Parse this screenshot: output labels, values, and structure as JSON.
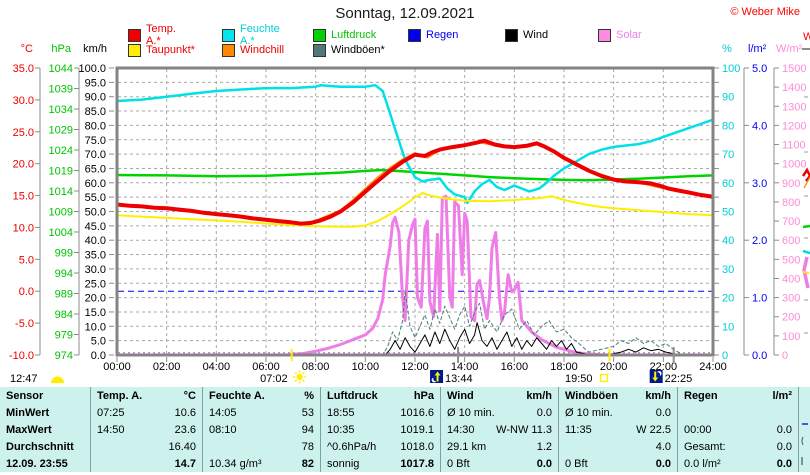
{
  "header": {
    "title": "Sonntag, 12.09.2021",
    "copyright": "© Weber Mike"
  },
  "legend": {
    "row1": [
      {
        "label": "Temp. A.*",
        "box": "#ee0000",
        "color": "#ee0000"
      },
      {
        "label": "Feuchte A.*",
        "box": "#00e5ee",
        "color": "#00cfdd"
      },
      {
        "label": "Luftdruck",
        "box": "#00d400",
        "color": "#00c400"
      },
      {
        "label": "Regen",
        "box": "#0000ee",
        "color": "#0000ee"
      },
      {
        "label": "Wind",
        "box": "#000000",
        "color": "#000000"
      },
      {
        "label": "Solar",
        "box": "#ff8ae2",
        "color": "#ee82ee"
      }
    ],
    "row2": [
      {
        "label": "Taupunkt*",
        "box": "#ffee00",
        "color": "#ee0000"
      },
      {
        "label": "Windchill",
        "box": "#ff8800",
        "color": "#ee0000"
      },
      {
        "label": "Windböen*",
        "box": "#507878",
        "color": "#000000"
      }
    ]
  },
  "astro_markers": {
    "solar_noon": "12:47",
    "sunrise": "07:02",
    "moonrise": "13:44",
    "sunset": "19:50",
    "moonset": "22:25"
  },
  "chart_data": {
    "type": "line",
    "title": "Sonntag, 12.09.2021",
    "grid": true,
    "x_axis": {
      "unit": "time",
      "range_hours": [
        0,
        24
      ],
      "ticks": [
        "00:00",
        "02:00",
        "04:00",
        "06:00",
        "08:00",
        "10:00",
        "12:00",
        "14:00",
        "16:00",
        "18:00",
        "20:00",
        "22:00",
        "24:00"
      ]
    },
    "axes": {
      "temp": {
        "unit": "°C",
        "min": -10,
        "max": 35,
        "step": 5,
        "color": "#ee0000",
        "labels": [
          "35.0",
          "30.0",
          "25.0",
          "20.0",
          "15.0",
          "10.0",
          "5.0",
          "0.0",
          "-5.0",
          "-10.0"
        ]
      },
      "hpa": {
        "unit": "hPa",
        "min": 974,
        "max": 1044,
        "step": 5,
        "color": "#00c400",
        "labels": [
          "1044",
          "1039",
          "1034",
          "1029",
          "1024",
          "1019",
          "1014",
          "1009",
          "1004",
          "999",
          "994",
          "989",
          "984",
          "979",
          "974"
        ]
      },
      "kmh": {
        "unit": "km/h",
        "min": 0,
        "max": 100,
        "step": 5,
        "color": "#000000",
        "labels": [
          "100.0",
          "95.0",
          "90.0",
          "85.0",
          "80.0",
          "75.0",
          "70.0",
          "65.0",
          "60.0",
          "55.0",
          "50.0",
          "45.0",
          "40.0",
          "35.0",
          "30.0",
          "25.0",
          "20.0",
          "15.0",
          "10.0",
          "5.0",
          "0.0"
        ]
      },
      "percent": {
        "unit": "%",
        "min": 0,
        "max": 100,
        "step": 10,
        "tick_step": 5,
        "color": "#00ccd5",
        "labels": [
          "100",
          "90",
          "80",
          "70",
          "60",
          "50",
          "40",
          "30",
          "20",
          "10",
          "0"
        ]
      },
      "rain": {
        "unit": "l/m²",
        "min": 0,
        "max": 5,
        "step": 1,
        "color": "#0000ee",
        "labels": [
          "5.0",
          "4.0",
          "3.0",
          "2.0",
          "1.0",
          "0.0"
        ]
      },
      "solar": {
        "unit": "W/m²",
        "min": 0,
        "max": 1500,
        "step": 100,
        "color": "#ff8ad8",
        "labels": [
          "1500",
          "1400",
          "1300",
          "1200",
          "1100",
          "1000",
          "900",
          "800",
          "700",
          "600",
          "500",
          "400",
          "300",
          "200",
          "100",
          "0"
        ]
      }
    },
    "reference_lines": [
      {
        "label": "0-degC-freezing-line",
        "axis": "temp",
        "value": 0,
        "color": "#0000ff",
        "dash": "6,4"
      },
      {
        "label": "solar-zero-baseline",
        "axis": "solar",
        "value": 12,
        "color": "#cc55cc",
        "dash": "2,3"
      },
      {
        "label": "rain-zero-baseline",
        "axis": "solar",
        "value": 4,
        "color": "#3333ee",
        "dash": "2,4"
      }
    ],
    "series": [
      {
        "name": "Regen",
        "axis": "rain",
        "color": "#0000ee",
        "width": 1,
        "x": [
          0,
          24
        ],
        "y": [
          0,
          0
        ]
      },
      {
        "name": "Solar",
        "axis": "solar",
        "color": "#ee7de8",
        "width": 3,
        "x": [
          6.8,
          7.5,
          8,
          8.5,
          9,
          9.3,
          9.6,
          10,
          10.3,
          10.5,
          10.7,
          10.8,
          11,
          11.1,
          11.2,
          11.35,
          11.5,
          11.6,
          11.75,
          11.9,
          12,
          12.1,
          12.25,
          12.4,
          12.5,
          12.6,
          12.75,
          12.9,
          13,
          13.1,
          13.25,
          13.4,
          13.5,
          13.6,
          13.75,
          13.9,
          14,
          14.1,
          14.25,
          14.4,
          14.5,
          14.6,
          14.75,
          14.9,
          15,
          15.1,
          15.25,
          15.4,
          15.5,
          15.6,
          15.75,
          15.9,
          16,
          16.15,
          16.3,
          16.5,
          16.7,
          16.9,
          17.1,
          17.4,
          17.7,
          18,
          18.4,
          18.8,
          19.2,
          19.6,
          24
        ],
        "y": [
          0,
          8,
          20,
          35,
          55,
          70,
          85,
          105,
          140,
          190,
          290,
          420,
          570,
          690,
          720,
          640,
          300,
          180,
          600,
          680,
          710,
          300,
          250,
          660,
          700,
          280,
          200,
          630,
          230,
          820,
          830,
          300,
          250,
          800,
          780,
          420,
          740,
          700,
          200,
          180,
          370,
          390,
          280,
          190,
          300,
          560,
          640,
          300,
          180,
          220,
          420,
          330,
          340,
          380,
          180,
          150,
          120,
          100,
          80,
          60,
          40,
          30,
          15,
          8,
          3,
          0,
          0
        ]
      },
      {
        "name": "Windböen*",
        "axis": "kmh",
        "color": "#4d7a7a",
        "width": 1,
        "dash": "4,2",
        "x": [
          0,
          10.7,
          10.9,
          11.1,
          11.3,
          11.5,
          11.6,
          11.8,
          12,
          12.2,
          12.4,
          12.6,
          12.8,
          13,
          13.2,
          13.4,
          13.6,
          13.8,
          14,
          14.2,
          14.4,
          14.6,
          14.8,
          15,
          15.3,
          15.6,
          15.9,
          16.2,
          16.5,
          16.8,
          17.1,
          17.4,
          17.7,
          18,
          18.3,
          18.6,
          19,
          19.5,
          20,
          20.3,
          20.6,
          20.9,
          21.2,
          21.5,
          21.8,
          22.1,
          22.4,
          22.8,
          23.2,
          24
        ],
        "y": [
          0,
          0,
          3,
          8,
          5,
          12,
          22.5,
          10,
          6,
          10,
          14,
          9,
          16,
          11,
          17,
          13,
          9,
          14,
          17,
          10,
          15,
          18,
          9,
          12,
          8,
          14,
          16,
          9,
          12,
          7,
          10,
          12,
          8,
          9,
          6,
          4,
          1,
          2,
          3,
          5,
          4,
          6,
          4,
          5,
          3,
          4,
          2,
          0,
          0,
          0
        ]
      },
      {
        "name": "Wind",
        "axis": "kmh",
        "color": "#000000",
        "width": 1,
        "x": [
          0,
          10.8,
          11,
          11.2,
          11.4,
          11.6,
          11.8,
          12,
          12.2,
          12.4,
          12.6,
          12.8,
          13,
          13.2,
          13.4,
          13.6,
          13.8,
          14,
          14.2,
          14.4,
          14.5,
          14.7,
          14.9,
          15.1,
          15.3,
          15.5,
          15.7,
          15.9,
          16.1,
          16.3,
          16.5,
          16.7,
          16.9,
          17.1,
          17.3,
          17.5,
          17.7,
          17.9,
          18.1,
          18.3,
          18.5,
          18.8,
          19.2,
          19.6,
          20,
          20.3,
          20.6,
          20.9,
          21.2,
          21.5,
          21.8,
          22.1,
          22.4,
          22.7,
          23,
          24
        ],
        "y": [
          0,
          0,
          2,
          5,
          2,
          6,
          3,
          1,
          4,
          7,
          3,
          8,
          4,
          9,
          5,
          2,
          6,
          9,
          4,
          7,
          11.3,
          5,
          3,
          6,
          2,
          5,
          8,
          3,
          6,
          2,
          5,
          3,
          6,
          4,
          2,
          5,
          3,
          5,
          2,
          4,
          1,
          0.5,
          0,
          0,
          0.5,
          1,
          2,
          1,
          2.5,
          1.5,
          2,
          1,
          0.5,
          0,
          0,
          0
        ]
      },
      {
        "name": "Windchill",
        "axis": "temp",
        "color": "#ff8800",
        "width": 1.5,
        "x": [
          0,
          2,
          4,
          6,
          7.4,
          8,
          9,
          9.5,
          10,
          10.5,
          11,
          11.5,
          12,
          12.5,
          13,
          13.5,
          14,
          14.5,
          15,
          16,
          17,
          18,
          19,
          20,
          21,
          22,
          23,
          24
        ],
        "y": [
          13.6,
          13.0,
          12.1,
          11.2,
          10.6,
          11.1,
          12.7,
          14.3,
          16.1,
          17.9,
          19.4,
          20.7,
          21.7,
          20.9,
          22.1,
          22.7,
          23.0,
          23.4,
          23.0,
          22.6,
          23.2,
          20.9,
          18.9,
          17.4,
          17.0,
          16.1,
          15.5,
          14.8
        ]
      },
      {
        "name": "Luftdruck",
        "axis": "hpa",
        "color": "#00d400",
        "width": 2.5,
        "x": [
          0,
          2,
          4,
          6,
          8,
          9,
          10,
          10.6,
          11,
          12,
          13,
          14,
          15,
          16,
          17,
          18,
          18.9,
          19.5,
          20,
          21,
          22,
          23,
          24
        ],
        "y": [
          1017.9,
          1017.8,
          1017.6,
          1017.7,
          1018.2,
          1018.5,
          1018.9,
          1019.1,
          1019.0,
          1018.6,
          1018.2,
          1017.8,
          1017.4,
          1017.1,
          1016.9,
          1016.7,
          1016.6,
          1016.7,
          1016.8,
          1017.0,
          1017.3,
          1017.6,
          1017.8
        ]
      },
      {
        "name": "Feuchte A.*",
        "axis": "percent",
        "color": "#00e0e8",
        "width": 2.5,
        "x": [
          0,
          1,
          2,
          3,
          4,
          5,
          6,
          7,
          8,
          8.2,
          9,
          10,
          10.4,
          10.7,
          11,
          11.3,
          11.6,
          12,
          12.3,
          12.6,
          13,
          13.3,
          13.6,
          14,
          14.1,
          14.4,
          14.7,
          15,
          15.3,
          15.6,
          16,
          16.3,
          16.6,
          17,
          17.3,
          17.6,
          18,
          18.5,
          19,
          19.5,
          20,
          20.5,
          21,
          21.5,
          22,
          22.5,
          23,
          23.5,
          24
        ],
        "y": [
          88.5,
          89,
          90,
          91,
          92,
          92.5,
          93,
          93,
          93.5,
          94,
          93.5,
          93.5,
          94,
          92,
          84,
          76,
          68,
          62,
          60.5,
          61,
          61.5,
          58,
          56,
          55,
          53,
          57,
          59.5,
          61,
          58.5,
          57.5,
          59,
          58,
          57,
          58,
          60,
          62.5,
          65,
          67.5,
          70,
          71.5,
          72.5,
          73,
          73.5,
          74.5,
          76,
          77.5,
          79,
          80.5,
          82
        ]
      },
      {
        "name": "Taupunkt*",
        "axis": "temp",
        "color": "#ffee00",
        "width": 2,
        "x": [
          0,
          1,
          2,
          3,
          4,
          5,
          6,
          7,
          8,
          9,
          9.5,
          10,
          10.5,
          11,
          11.5,
          12,
          12.3,
          12.6,
          13,
          13.5,
          14,
          15,
          16,
          17,
          17.5,
          18,
          18.5,
          19,
          19.5,
          20,
          21,
          22,
          23,
          24
        ],
        "y": [
          11.9,
          11.7,
          11.5,
          11.3,
          11.1,
          10.9,
          10.6,
          10.4,
          10.2,
          10.1,
          10.1,
          10.3,
          11.0,
          12.1,
          13.3,
          14.7,
          15.4,
          15.0,
          14.7,
          14.4,
          14.2,
          14.1,
          14.3,
          14.6,
          14.9,
          14.3,
          13.9,
          13.5,
          13.2,
          13.0,
          12.7,
          12.4,
          12.1,
          11.9
        ]
      },
      {
        "name": "Temp. A.*",
        "axis": "temp",
        "color": "#ee0000",
        "width": 4,
        "x": [
          0,
          0.5,
          1,
          1.5,
          2,
          2.5,
          3,
          3.5,
          4,
          4.5,
          5,
          5.5,
          6,
          6.5,
          7,
          7.4,
          7.8,
          8.2,
          8.6,
          9,
          9.5,
          10,
          10.5,
          11,
          11.5,
          12,
          12.4,
          12.7,
          13,
          13.5,
          14,
          14.5,
          14.8,
          15.2,
          15.6,
          16,
          16.5,
          16.9,
          17.2,
          17.6,
          18,
          18.5,
          19,
          19.5,
          20,
          20.5,
          21,
          21.5,
          21.9,
          22.2,
          22.6,
          23,
          23.5,
          24
        ],
        "y": [
          13.6,
          13.4,
          13.3,
          13.1,
          13.0,
          12.8,
          12.6,
          12.3,
          12.1,
          11.9,
          11.7,
          11.4,
          11.2,
          11.0,
          10.8,
          10.6,
          10.7,
          11.1,
          11.7,
          12.5,
          13.9,
          15.6,
          17.3,
          18.9,
          20.3,
          21.4,
          21.2,
          21.8,
          22.2,
          22.6,
          22.9,
          23.3,
          23.6,
          23.0,
          22.7,
          22.6,
          22.8,
          23.2,
          22.7,
          21.9,
          20.9,
          19.9,
          18.9,
          18.1,
          17.5,
          17.2,
          17.1,
          16.9,
          16.5,
          16.1,
          15.8,
          15.5,
          15.1,
          14.8
        ]
      }
    ]
  },
  "table": {
    "row_labels": [
      "Sensor",
      "MinWert",
      "MaxWert",
      "Durchschnitt",
      "12.09. 23:55"
    ],
    "columns": [
      {
        "title": "Temp. A.",
        "unit": "°C",
        "rows": [
          [
            "07:25",
            "10.6"
          ],
          [
            "14:50",
            "23.6"
          ],
          [
            "",
            "16.40"
          ],
          [
            "",
            "14.7"
          ]
        ]
      },
      {
        "title": "Feuchte A.",
        "unit": "%",
        "rows": [
          [
            "14:05",
            "53"
          ],
          [
            "08:10",
            "94"
          ],
          [
            "",
            "78"
          ],
          [
            "10.34 g/m³",
            "82"
          ]
        ]
      },
      {
        "title": "Luftdruck",
        "unit": "hPa",
        "rows": [
          [
            "18:55",
            "1016.6"
          ],
          [
            "10:35",
            "1019.1"
          ],
          [
            "^0.6hPa/h",
            "1018.0"
          ],
          [
            "sonnig",
            "1017.8"
          ]
        ]
      },
      {
        "title": "Wind",
        "unit": "km/h",
        "rows": [
          [
            "Ø 10 min.",
            "0.0"
          ],
          [
            "14:30",
            "W-NW 11.3"
          ],
          [
            "29.1 km",
            "1.2"
          ],
          [
            "0 Bft",
            "0.0"
          ]
        ]
      },
      {
        "title": "Windböen",
        "unit": "km/h",
        "rows": [
          [
            "Ø 10 min.",
            "0.0"
          ],
          [
            "11:35",
            "W 22.5"
          ],
          [
            "",
            "4.0"
          ],
          [
            "0 Bft",
            "0.0"
          ]
        ]
      },
      {
        "title": "Regen",
        "unit": "l/m²",
        "rows": [
          [
            "",
            ""
          ],
          [
            "00:00",
            "0.0"
          ],
          [
            "Gesamt:",
            "0.0"
          ],
          [
            "0.0 l/m²",
            "0.0"
          ]
        ]
      }
    ]
  }
}
